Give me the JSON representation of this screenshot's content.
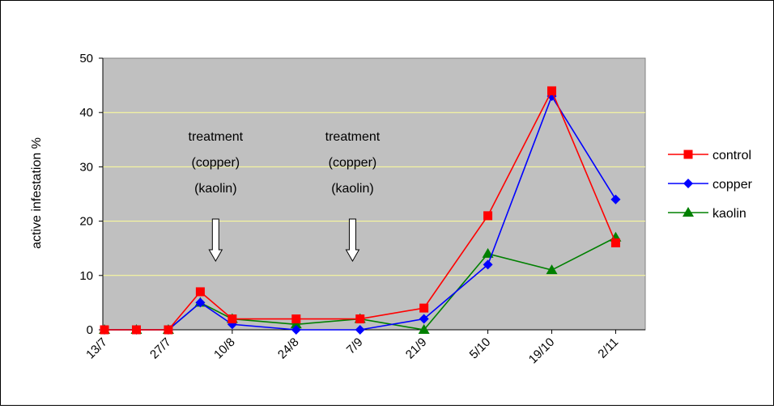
{
  "chart_data": {
    "type": "line",
    "title": "",
    "xlabel": "",
    "ylabel": "active infestation %",
    "ylim": [
      0,
      50
    ],
    "yticks": [
      0,
      10,
      20,
      30,
      40,
      50
    ],
    "grid": true,
    "legend_position": "right",
    "x": [
      "13/7",
      "20/7",
      "27/7",
      "3/8",
      "10/8",
      "24/8",
      "7/9",
      "21/9",
      "5/10",
      "19/10",
      "2/11"
    ],
    "x_day_index": [
      0,
      7,
      14,
      21,
      28,
      42,
      56,
      70,
      84,
      98,
      112
    ],
    "x_tick_labels": [
      "13/7",
      "27/7",
      "10/8",
      "24/8",
      "7/9",
      "21/9",
      "5/10",
      "19/10",
      "2/11"
    ],
    "x_tick_day_index": [
      0,
      14,
      28,
      42,
      56,
      70,
      84,
      98,
      112
    ],
    "series": [
      {
        "name": "control",
        "color": "#ff0000",
        "marker": "square",
        "values": [
          0,
          0,
          0,
          7,
          2,
          2,
          2,
          4,
          21,
          44,
          16
        ]
      },
      {
        "name": "copper",
        "color": "#0000ff",
        "marker": "diamond",
        "values": [
          0,
          0,
          0,
          5,
          1,
          0,
          0,
          2,
          12,
          43,
          24
        ]
      },
      {
        "name": "kaolin",
        "color": "#008000",
        "marker": "triangle",
        "values": [
          0,
          0,
          0,
          5,
          2,
          1,
          2,
          0,
          14,
          11,
          17
        ]
      }
    ],
    "annotations": [
      {
        "lines": [
          "treatment",
          "(copper)",
          "(kaolin)"
        ],
        "x_day_index": 24
      },
      {
        "lines": [
          "treatment",
          "(copper)",
          "(kaolin)"
        ],
        "x_day_index": 54
      }
    ],
    "plot_background": "#c0c0c0",
    "gridline_color": "#ffff99"
  }
}
